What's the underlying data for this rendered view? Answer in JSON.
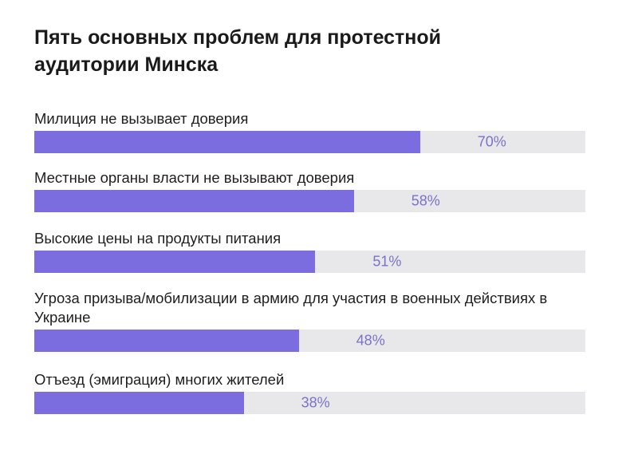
{
  "chart_data": {
    "type": "bar",
    "orientation": "horizontal",
    "title": "Пять основных проблем для протестной аудитории Минска",
    "categories": [
      "Милиция не вызывает доверия",
      "Местные органы власти не вызывают доверия",
      "Высокие цены на продукты питания",
      "Угроза призыва/мобилизации в армию для участия в военных действиях в Украине",
      "Отъезд (эмиграция) многих жителей"
    ],
    "values": [
      70,
      58,
      51,
      48,
      38
    ],
    "value_labels": [
      "70%",
      "58%",
      "51%",
      "48%",
      "38%"
    ],
    "xlim": [
      0,
      100
    ],
    "grid": false,
    "colors": {
      "bar": "#7b6de0",
      "track": "#e8e8ea",
      "value_label": "#7a72c8"
    }
  }
}
